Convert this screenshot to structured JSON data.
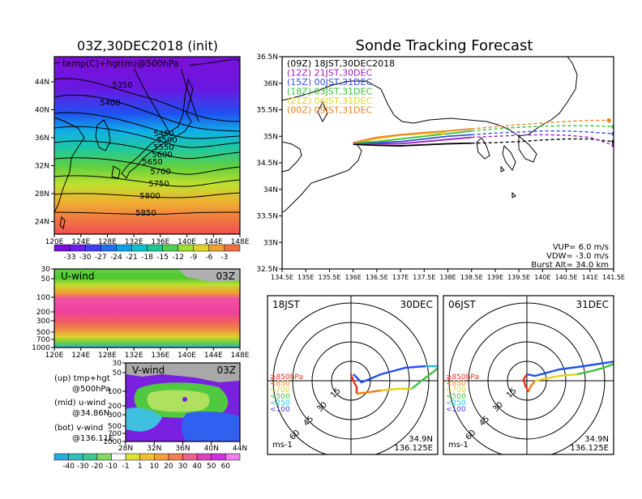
{
  "left_panel": {
    "title": "03Z,30DEC2018 (init)",
    "map": {
      "label": "temp(C)+hgt(m)@500hPa",
      "lat_ticks": [
        "44N",
        "40N",
        "36N",
        "32N",
        "28N",
        "24N"
      ],
      "lon_ticks": [
        "120E",
        "124E",
        "128E",
        "132E",
        "136E",
        "140E",
        "144E",
        "148E"
      ],
      "contour_labels": [
        "5350",
        "5400",
        "5450",
        "5500",
        "5550",
        "5600",
        "5650",
        "5700",
        "5750",
        "5800",
        "5850"
      ]
    },
    "colorbar_temp": {
      "labels": [
        "-33",
        "-30",
        "-27",
        "-24",
        "-21",
        "-18",
        "-15",
        "-12",
        "-9",
        "-6",
        "-3"
      ]
    },
    "u_wind": {
      "label": "U-wind",
      "time": "03Z",
      "p_ticks": [
        "30",
        "50",
        "100",
        "200",
        "300",
        "500",
        "700",
        "1000"
      ],
      "lon_ticks": [
        "120E",
        "124E",
        "128E",
        "132E",
        "136E",
        "140E",
        "144E",
        "148E"
      ]
    },
    "v_wind": {
      "label": "V-wind",
      "time": "03Z",
      "p_ticks": [
        "30",
        "50",
        "100",
        "200",
        "300",
        "500",
        "700",
        "1000"
      ],
      "lat_ticks": [
        "28N",
        "32N",
        "36N",
        "40N",
        "44N"
      ]
    },
    "legend_text": {
      "up1": "(up) tmp+hgt",
      "up2": "@500hPa",
      "mid1": "(mid) u-wind",
      "mid2": "@34.86N",
      "bot1": "(bot) v-wind",
      "bot2": "@136.11E"
    },
    "colorbar_wind": {
      "labels": [
        "-40",
        "-30",
        "-20",
        "-10",
        "-1",
        "1",
        "10",
        "20",
        "30",
        "40",
        "50",
        "60"
      ]
    }
  },
  "right_panel": {
    "title": "Sonde Tracking Forecast",
    "lat_ticks": [
      "36.5N",
      "36N",
      "35.5N",
      "35N",
      "34.5N",
      "34N",
      "33.5N",
      "33N",
      "32.5N"
    ],
    "lon_ticks": [
      "134.5E",
      "135E",
      "135.5E",
      "136E",
      "136.5E",
      "137E",
      "137.5E",
      "138E",
      "138.5E",
      "139E",
      "139.5E",
      "140E",
      "140.5E",
      "141E",
      "141.5E"
    ],
    "params": {
      "vup": "VUP=  6.0 m/s",
      "vdw": "VDW= -3.0 m/s",
      "burst": "Burst Alt= 34.0 km"
    },
    "hodograph_1": {
      "left": "18JST",
      "right": "30DEC",
      "unit": "ms-1",
      "lat": "34.9N",
      "lon": "136.125E",
      "rings": [
        "15",
        "30",
        "45",
        "60"
      ]
    },
    "hodograph_2": {
      "left": "06JST",
      "right": "31DEC",
      "unit": "ms-1",
      "lat": "34.9N",
      "lon": "136.125E",
      "rings": [
        "15",
        "30",
        "45",
        "60"
      ]
    },
    "hodo_legend": [
      {
        "text": "≥850hPa",
        "color": "#e83020"
      },
      {
        "text": "<850",
        "color": "#f08020"
      },
      {
        "text": "<700",
        "color": "#e8d020"
      },
      {
        "text": "<500",
        "color": "#40c040"
      },
      {
        "text": "<250",
        "color": "#20c0e0"
      },
      {
        "text": "<100",
        "color": "#4040e0"
      }
    ]
  },
  "chart_data": [
    {
      "type": "line",
      "title": "Sonde Tracking Forecast",
      "xlabel": "",
      "ylabel": "",
      "xlim": [
        134.5,
        141.5
      ],
      "ylim": [
        32.5,
        36.5
      ],
      "legend_position": "top-left",
      "series": [
        {
          "name": "(09Z) 18JST,30DEC2018",
          "color": "#000000",
          "x": [
            136.0,
            136.5,
            137.0,
            137.5,
            138.0,
            138.5,
            139.0,
            139.5,
            140.0,
            140.5,
            141.0,
            141.5
          ],
          "y": [
            34.85,
            34.83,
            34.82,
            34.84,
            34.86,
            34.87,
            34.88,
            34.9,
            34.93,
            34.95,
            34.95,
            34.9
          ]
        },
        {
          "name": "(12Z) 21JST,30DEC",
          "color": "#a020c0",
          "x": [
            136.0,
            136.5,
            137.0,
            137.5,
            138.0,
            138.5,
            139.0,
            139.5,
            140.0,
            140.5,
            141.0,
            141.5
          ],
          "y": [
            34.87,
            34.86,
            34.86,
            34.9,
            34.94,
            34.98,
            35.0,
            35.02,
            35.03,
            35.02,
            34.98,
            34.83
          ]
        },
        {
          "name": "(15Z) 00JST,31DEC",
          "color": "#3050e0",
          "x": [
            136.0,
            136.5,
            137.0,
            137.5,
            138.0,
            138.5,
            139.0,
            139.5,
            140.0,
            140.5,
            141.0,
            141.5
          ],
          "y": [
            34.87,
            34.88,
            34.9,
            34.95,
            35.0,
            35.03,
            35.06,
            35.08,
            35.1,
            35.1,
            35.08,
            35.05
          ]
        },
        {
          "name": "(18Z) 03JST,31DEC",
          "color": "#30c030",
          "x": [
            136.0,
            136.5,
            137.0,
            137.5,
            138.0,
            138.5,
            139.0,
            139.5,
            140.0,
            140.5,
            141.0,
            141.5
          ],
          "y": [
            34.88,
            34.9,
            34.95,
            35.0,
            35.05,
            35.1,
            35.14,
            35.17,
            35.19,
            35.2,
            35.2,
            35.18
          ]
        },
        {
          "name": "(21Z) 06JST,31DEC",
          "color": "#e8d020",
          "x": [
            136.0,
            136.5,
            137.0,
            137.5,
            137.9
          ],
          "y": [
            34.88,
            34.95,
            35.02,
            35.05,
            35.06
          ]
        },
        {
          "name": "(00Z) 09JST,31DEC",
          "color": "#f08020",
          "x": [
            136.0,
            136.5,
            137.0,
            137.5,
            138.0,
            138.5,
            139.0,
            139.5,
            140.0,
            140.5,
            141.0,
            141.4
          ],
          "y": [
            34.88,
            34.98,
            35.03,
            35.07,
            35.1,
            35.14,
            35.18,
            35.22,
            35.25,
            35.28,
            35.3,
            35.3
          ]
        }
      ]
    }
  ]
}
